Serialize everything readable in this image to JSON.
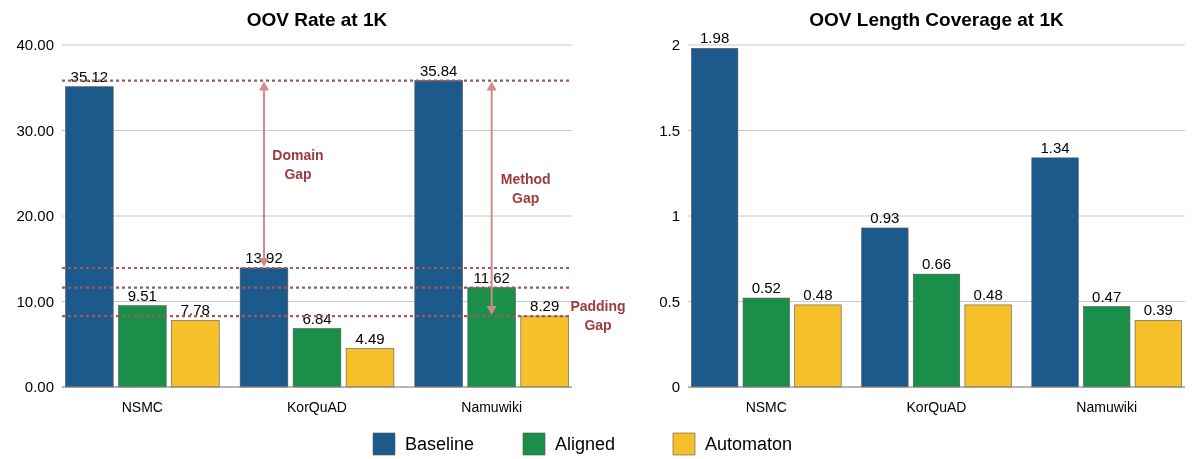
{
  "chart_data": [
    {
      "type": "bar",
      "title": "OOV Rate at 1K",
      "categories": [
        "NSMC",
        "KorQuAD",
        "Namuwiki"
      ],
      "series": [
        {
          "name": "Baseline",
          "color": "#1d5a8c",
          "values": [
            35.12,
            13.92,
            35.84
          ]
        },
        {
          "name": "Aligned",
          "color": "#198f4a",
          "values": [
            9.51,
            6.84,
            11.62
          ]
        },
        {
          "name": "Automaton",
          "color": "#f6c128",
          "values": [
            7.78,
            4.49,
            8.29
          ]
        }
      ],
      "ylim": [
        0,
        40
      ],
      "yticks": [
        {
          "value": 0,
          "label": "0.00"
        },
        {
          "value": 10,
          "label": "10.00"
        },
        {
          "value": 20,
          "label": "20.00"
        },
        {
          "value": 30,
          "label": "30.00"
        },
        {
          "value": 40,
          "label": "40.00"
        }
      ],
      "grid": "y",
      "data_labels": true,
      "legend": "bottom",
      "ref_lines": [
        {
          "axis": "y",
          "value": 35.84,
          "label": null,
          "color": "#9c5a60",
          "line_style": "dotted"
        },
        {
          "axis": "y",
          "value": 13.92,
          "label": null,
          "color": "#9c5a60",
          "line_style": "dotted"
        },
        {
          "axis": "y",
          "value": 11.62,
          "label": null,
          "color": "#9c5a60",
          "line_style": "dotted"
        },
        {
          "axis": "y",
          "value": 8.29,
          "label": null,
          "color": "#9c5a60",
          "line_style": "dotted"
        }
      ],
      "annotations": [
        "Domain Gap",
        "Method Gap",
        "Padding Gap"
      ]
    },
    {
      "type": "bar",
      "title": "OOV Length Coverage at 1K",
      "categories": [
        "NSMC",
        "KorQuAD",
        "Namuwiki"
      ],
      "series": [
        {
          "color": "#1d5a8c",
          "values": [
            1.98,
            0.93,
            1.34
          ]
        },
        {
          "color": "#198f4a",
          "values": [
            0.52,
            0.66,
            0.47
          ]
        },
        {
          "color": "#f6c128",
          "values": [
            0.48,
            0.48,
            0.39
          ]
        }
      ],
      "ylim": [
        0,
        2
      ],
      "yticks": [
        0,
        0.5,
        1,
        1.5,
        2
      ],
      "grid": "y",
      "data_labels": true
    }
  ]
}
